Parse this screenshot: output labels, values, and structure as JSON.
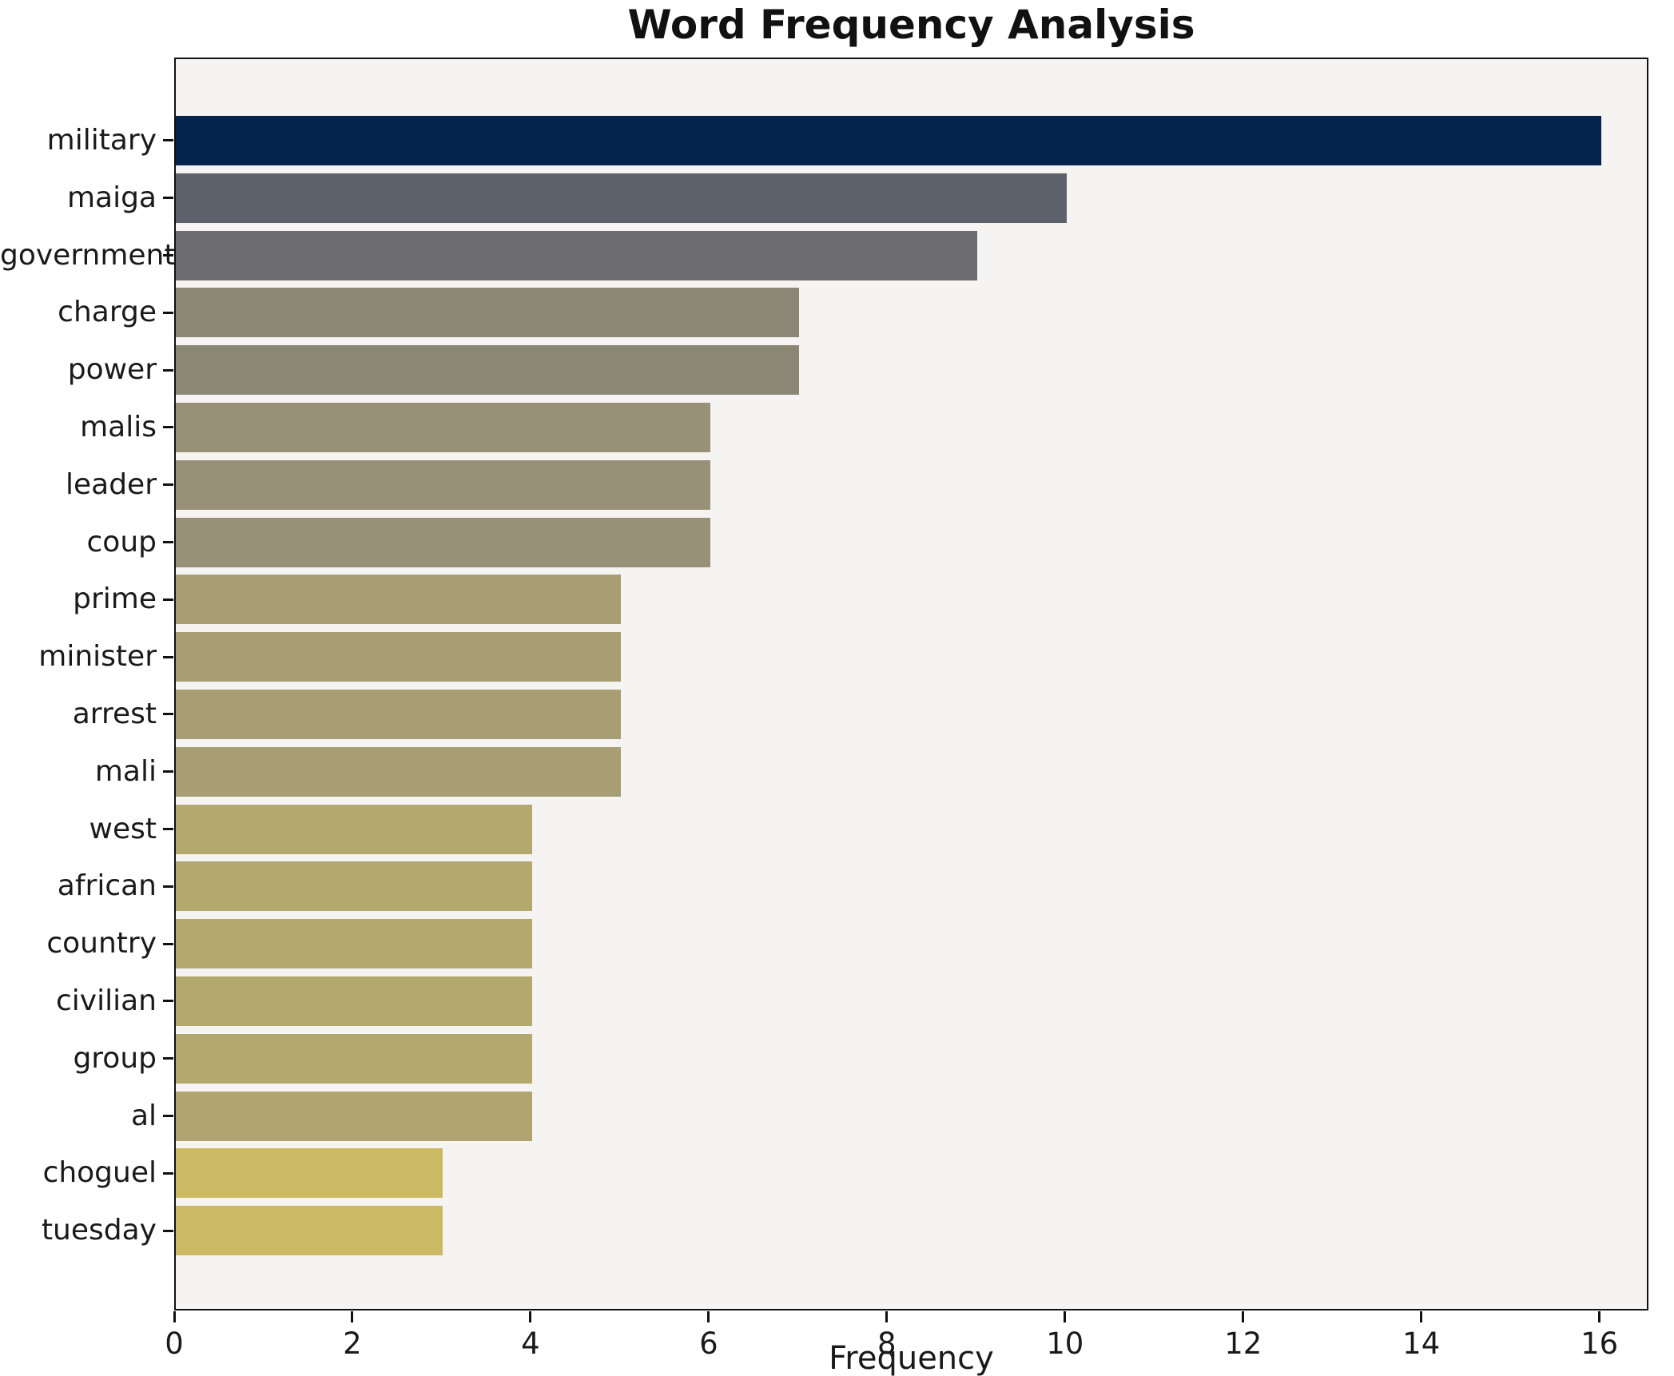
{
  "figure": {
    "title": "Word Frequency Analysis",
    "background_color": "#ffffff",
    "plot_background_color": "#f5f4f2",
    "spine_color": "#111111",
    "text_color": "#1a1a1a"
  },
  "chart_data": {
    "type": "bar",
    "orientation": "horizontal",
    "title": "Word Frequency Analysis",
    "xlabel": "Frequency",
    "ylabel": "",
    "grid": false,
    "legend": false,
    "xlim": [
      0,
      16.55
    ],
    "xticks": [
      0,
      2,
      4,
      6,
      8,
      10,
      12,
      14,
      16
    ],
    "categories": [
      "military",
      "maiga",
      "government",
      "charge",
      "power",
      "malis",
      "leader",
      "coup",
      "prime",
      "minister",
      "arrest",
      "mali",
      "west",
      "african",
      "country",
      "civilian",
      "group",
      "al",
      "choguel",
      "tuesday"
    ],
    "values": [
      16,
      10,
      9,
      7,
      7,
      6,
      6,
      6,
      5,
      5,
      5,
      5,
      4,
      4,
      4,
      4,
      4,
      4,
      3,
      3
    ],
    "bar_colors": [
      "#03234d",
      "#5d616b",
      "#6c6c70",
      "#8a8774",
      "#8a8774",
      "#989178",
      "#989178",
      "#989178",
      "#a89e74",
      "#a89e74",
      "#a89e74",
      "#a89e74",
      "#b3a86e",
      "#b3a86e",
      "#b3a86e",
      "#b3a86e",
      "#b3a86e",
      "#b0a570",
      "#ccb963",
      "#ccb963"
    ]
  }
}
